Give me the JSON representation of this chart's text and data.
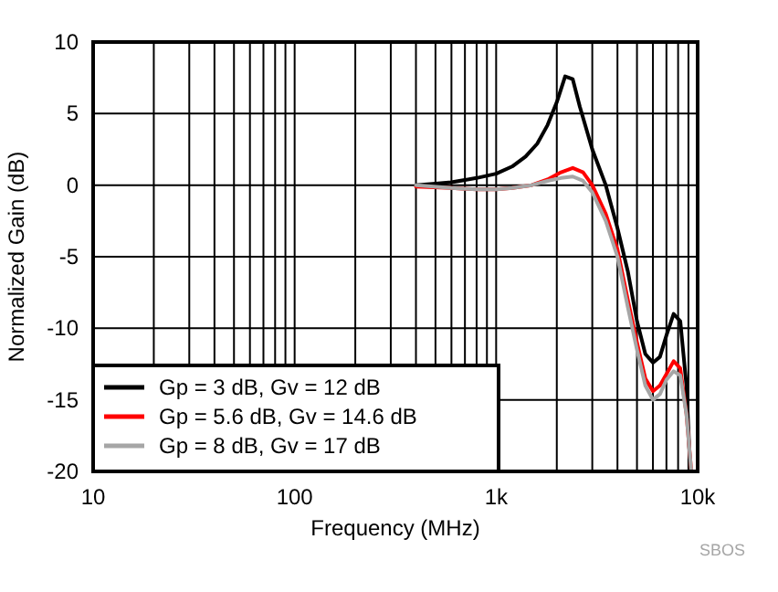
{
  "chart_data": {
    "type": "line",
    "xlabel": "Frequency (MHz)",
    "ylabel": "Normalized Gain (dB)",
    "log": "x",
    "grid": true,
    "legend": "bottom left",
    "line_style": "solid",
    "xlim": [
      10,
      10000
    ],
    "ylim": [
      -20,
      10
    ],
    "xticks": [
      10,
      {
        "value": 20,
        "label": null
      },
      {
        "value": 30,
        "label": null
      },
      {
        "value": 40,
        "label": null
      },
      {
        "value": 50,
        "label": null
      },
      {
        "value": 60,
        "label": null
      },
      {
        "value": 70,
        "label": null
      },
      {
        "value": 80,
        "label": null
      },
      {
        "value": 90,
        "label": null
      },
      100,
      {
        "value": 200,
        "label": null
      },
      {
        "value": 300,
        "label": null
      },
      {
        "value": 400,
        "label": null
      },
      {
        "value": 500,
        "label": null
      },
      {
        "value": 600,
        "label": null
      },
      {
        "value": 700,
        "label": null
      },
      {
        "value": 800,
        "label": null
      },
      {
        "value": 900,
        "label": null
      },
      {
        "value": 1000,
        "label": "1k"
      },
      {
        "value": 2000,
        "label": null
      },
      {
        "value": 3000,
        "label": null
      },
      {
        "value": 4000,
        "label": null
      },
      {
        "value": 5000,
        "label": null
      },
      {
        "value": 6000,
        "label": null
      },
      {
        "value": 7000,
        "label": null
      },
      {
        "value": 8000,
        "label": null
      },
      {
        "value": 9000,
        "label": null
      },
      {
        "value": 10000,
        "label": "10k"
      }
    ],
    "yticks": [
      -20,
      -15,
      -10,
      -5,
      0,
      5,
      10
    ],
    "annotations": [
      "SBOS"
    ],
    "series": [
      {
        "name": "Gp = 3 dB, Gv = 12 dB",
        "color": "#000000",
        "x": [
          400,
          500,
          600,
          800,
          1000,
          1200,
          1400,
          1600,
          1800,
          2000,
          2200,
          2400,
          2600,
          3000,
          3500,
          4000,
          4500,
          5000,
          5500,
          6000,
          6500,
          7000,
          7600,
          8200,
          8800,
          9200
        ],
        "values": [
          0,
          0.1,
          0.2,
          0.5,
          0.8,
          1.3,
          2,
          2.9,
          4.2,
          5.8,
          7.6,
          7.4,
          5.5,
          2.5,
          0,
          -3,
          -6,
          -9.5,
          -11.8,
          -12.4,
          -12,
          -10.5,
          -9,
          -9.5,
          -14,
          -20
        ]
      },
      {
        "name": "Gp = 5.6 dB, Gv = 14.6 dB",
        "color": "#ff0000",
        "x": [
          400,
          600,
          800,
          1000,
          1200,
          1500,
          1800,
          2100,
          2400,
          2700,
          3000,
          3500,
          4000,
          4500,
          5000,
          5500,
          6000,
          6500,
          7000,
          7600,
          8200,
          8800,
          9300
        ],
        "values": [
          -0.1,
          -0.2,
          -0.3,
          -0.3,
          -0.2,
          0,
          0.4,
          0.9,
          1.2,
          0.9,
          0,
          -2,
          -4.5,
          -8,
          -11,
          -13.5,
          -14.4,
          -14,
          -13.2,
          -12.3,
          -12.8,
          -16,
          -20
        ]
      },
      {
        "name": "Gp = 8 dB, Gv = 17 dB",
        "color": "#a6a6a6",
        "x": [
          400,
          600,
          800,
          1000,
          1200,
          1500,
          1800,
          2100,
          2400,
          2700,
          3000,
          3500,
          4000,
          4500,
          5000,
          5500,
          6000,
          6500,
          7000,
          7600,
          8200,
          8800,
          9300
        ],
        "values": [
          0,
          -0.2,
          -0.3,
          -0.3,
          -0.2,
          0,
          0.3,
          0.5,
          0.6,
          0.3,
          -0.5,
          -2.5,
          -5,
          -8.5,
          -11.5,
          -14,
          -15,
          -14.6,
          -13.6,
          -13,
          -13.3,
          -16,
          -20
        ]
      }
    ]
  }
}
